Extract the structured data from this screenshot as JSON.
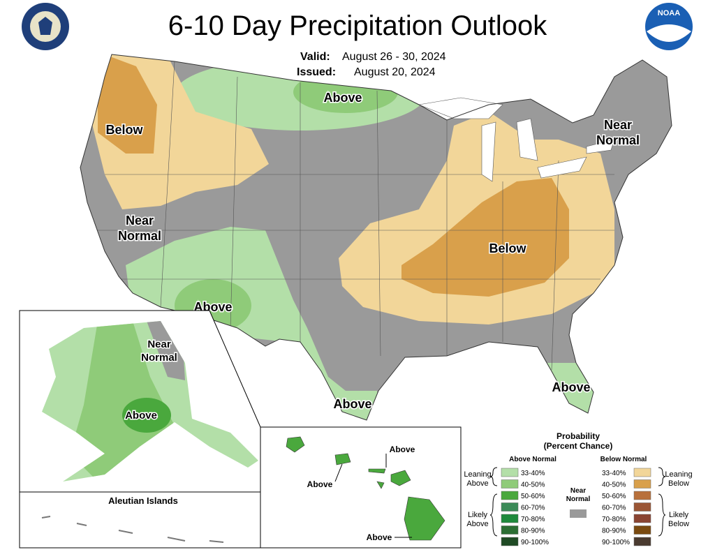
{
  "header": {
    "title": "6-10 Day Precipitation Outlook",
    "valid_label": "Valid:",
    "valid_value": "August 26 - 30, 2024",
    "issued_label": "Issued:",
    "issued_value": "August 20, 2024"
  },
  "logos": {
    "noaa": "NOAA"
  },
  "map_labels": {
    "nw_below": "Below",
    "north_above": "Above",
    "ne_near": [
      "Near",
      "Normal"
    ],
    "west_near": [
      "Near",
      "Normal"
    ],
    "ohio_below": "Below",
    "sw_above": "Above",
    "tx_above": "Above",
    "fl_above": "Above",
    "ak_near": [
      "Near",
      "Normal"
    ],
    "ak_above": "Above",
    "aleutian": "Aleutian Islands",
    "hi_above": [
      "Above",
      "Above",
      "Above"
    ]
  },
  "legend": {
    "title": [
      "Probability",
      "(Percent Chance)"
    ],
    "above_header": "Above Normal",
    "below_header": "Below Normal",
    "near_label": [
      "Near",
      "Normal"
    ],
    "near_color": "#9a9a9a",
    "leaning_above": [
      "Leaning",
      "Above"
    ],
    "likely_above": [
      "Likely",
      "Above"
    ],
    "leaning_below": [
      "Leaning",
      "Below"
    ],
    "likely_below": [
      "Likely",
      "Below"
    ],
    "above": [
      {
        "range": "33-40%",
        "color": "#b3dfa8"
      },
      {
        "range": "40-50%",
        "color": "#8fcb79"
      },
      {
        "range": "50-60%",
        "color": "#4aa83d"
      },
      {
        "range": "60-70%",
        "color": "#3c8a58"
      },
      {
        "range": "70-80%",
        "color": "#1f8a3c"
      },
      {
        "range": "80-90%",
        "color": "#2b6e33"
      },
      {
        "range": "90-100%",
        "color": "#1f4a24"
      }
    ],
    "below": [
      {
        "range": "33-40%",
        "color": "#f2d699"
      },
      {
        "range": "40-50%",
        "color": "#d9a04b"
      },
      {
        "range": "50-60%",
        "color": "#b8703b"
      },
      {
        "range": "60-70%",
        "color": "#9a5535"
      },
      {
        "range": "70-80%",
        "color": "#8a4432"
      },
      {
        "range": "80-90%",
        "color": "#7a4a10"
      },
      {
        "range": "90-100%",
        "color": "#4a3b30"
      }
    ]
  }
}
